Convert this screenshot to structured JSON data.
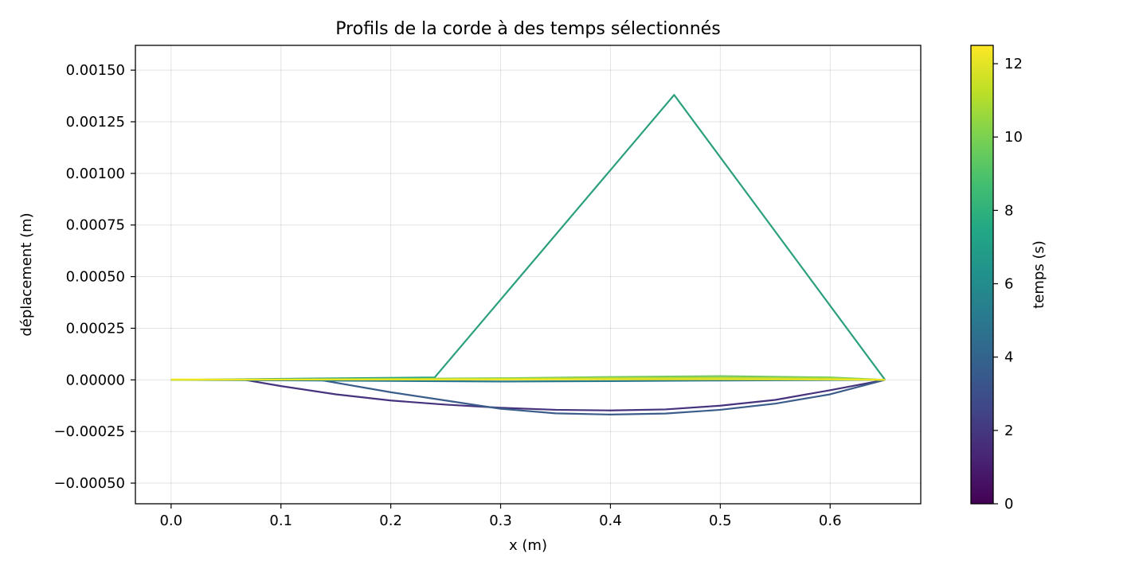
{
  "chart_data": {
    "type": "line",
    "title": "Profils de la corde à des temps sélectionnés",
    "xlabel": "x (m)",
    "ylabel": "déplacement (m)",
    "xlim": [
      -0.0325,
      0.6825
    ],
    "ylim": [
      -0.0006,
      0.00162
    ],
    "grid": true,
    "x_ticks": [
      0.0,
      0.1,
      0.2,
      0.3,
      0.4,
      0.5,
      0.6
    ],
    "x_tick_labels": [
      "0.0",
      "0.1",
      "0.2",
      "0.3",
      "0.4",
      "0.5",
      "0.6"
    ],
    "y_ticks": [
      -0.0005,
      -0.00025,
      0.0,
      0.00025,
      0.0005,
      0.00075,
      0.001,
      0.00125,
      0.0015
    ],
    "y_tick_labels": [
      "−0.00050",
      "−0.00025",
      "0.00000",
      "0.00025",
      "0.00050",
      "0.00075",
      "0.00100",
      "0.00125",
      "0.00150"
    ],
    "colorbar": {
      "label": "temps (s)",
      "colormap": "viridis",
      "range": [
        0,
        12.5
      ],
      "ticks": [
        0,
        2,
        4,
        6,
        8,
        10,
        12
      ],
      "tick_labels": [
        "0",
        "2",
        "4",
        "6",
        "8",
        "10",
        "12"
      ]
    },
    "series": [
      {
        "time": 1.8,
        "color": "#46337e",
        "points": [
          [
            0.0,
            0.0
          ],
          [
            0.067,
            0.0
          ],
          [
            0.1,
            -3e-05
          ],
          [
            0.15,
            -7e-05
          ],
          [
            0.2,
            -0.0001
          ],
          [
            0.25,
            -0.00012
          ],
          [
            0.3,
            -0.000135
          ],
          [
            0.35,
            -0.000145
          ],
          [
            0.4,
            -0.000148
          ],
          [
            0.45,
            -0.000143
          ],
          [
            0.5,
            -0.000125
          ],
          [
            0.55,
            -9.7e-05
          ],
          [
            0.6,
            -5e-05
          ],
          [
            0.65,
            0.0
          ]
        ]
      },
      {
        "time": 3.6,
        "color": "#3b5d8b",
        "points": [
          [
            0.0,
            0.0
          ],
          [
            0.135,
            0.0
          ],
          [
            0.2,
            -6e-05
          ],
          [
            0.25,
            -0.0001
          ],
          [
            0.3,
            -0.00014
          ],
          [
            0.35,
            -0.000162
          ],
          [
            0.4,
            -0.000168
          ],
          [
            0.45,
            -0.000163
          ],
          [
            0.5,
            -0.000145
          ],
          [
            0.55,
            -0.000115
          ],
          [
            0.6,
            -7e-05
          ],
          [
            0.65,
            0.0
          ]
        ]
      },
      {
        "time": 7.2,
        "color": "#2ca07e",
        "points": [
          [
            0.0,
            0.0
          ],
          [
            0.24,
            1.2e-05
          ],
          [
            0.458,
            0.00138
          ],
          [
            0.65,
            0.0
          ]
        ]
      },
      {
        "time": 5.4,
        "color": "#2b7b8e",
        "points": [
          [
            0.0,
            0.0
          ],
          [
            0.1,
            -2e-06
          ],
          [
            0.2,
            -5e-06
          ],
          [
            0.3,
            -8e-06
          ],
          [
            0.4,
            -6e-06
          ],
          [
            0.5,
            -3e-06
          ],
          [
            0.6,
            -1e-06
          ],
          [
            0.65,
            0.0
          ]
        ]
      },
      {
        "time": 9.0,
        "color": "#74c765",
        "points": [
          [
            0.0,
            0.0
          ],
          [
            0.1,
            2e-06
          ],
          [
            0.2,
            5e-06
          ],
          [
            0.3,
            8e-06
          ],
          [
            0.4,
            1.4e-05
          ],
          [
            0.5,
            1.8e-05
          ],
          [
            0.6,
            1.2e-05
          ],
          [
            0.65,
            0.0
          ]
        ]
      },
      {
        "time": 10.8,
        "color": "#b5dc36",
        "points": [
          [
            0.0,
            0.0
          ],
          [
            0.1,
            1e-06
          ],
          [
            0.2,
            3e-06
          ],
          [
            0.3,
            5e-06
          ],
          [
            0.4,
            8e-06
          ],
          [
            0.5,
            1e-05
          ],
          [
            0.6,
            7e-06
          ],
          [
            0.65,
            0.0
          ]
        ]
      },
      {
        "time": 12.5,
        "color": "#f0e521",
        "points": [
          [
            0.0,
            2e-06
          ],
          [
            0.1,
            2e-06
          ],
          [
            0.2,
            2e-06
          ],
          [
            0.3,
            2e-06
          ],
          [
            0.4,
            3e-06
          ],
          [
            0.5,
            3e-06
          ],
          [
            0.6,
            2e-06
          ],
          [
            0.65,
            0.0
          ]
        ]
      }
    ]
  }
}
